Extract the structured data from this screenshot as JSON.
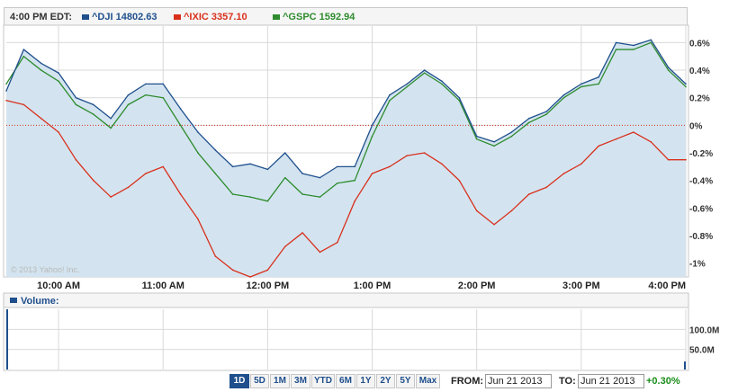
{
  "header": {
    "timestamp": "4:00 PM EDT:",
    "legend": [
      {
        "label": "^DJI 14802.63",
        "color": "#1f4f8c"
      },
      {
        "label": "^IXIC 3357.10",
        "color": "#d9301c"
      },
      {
        "label": "^GSPC 1592.94",
        "color": "#2e8b2e"
      }
    ]
  },
  "watermark": "© 2013 Yahoo! Inc.",
  "volume_label": "Volume:",
  "controls": {
    "ranges": [
      "1D",
      "5D",
      "1M",
      "3M",
      "YTD",
      "6M",
      "1Y",
      "2Y",
      "5Y",
      "Max"
    ],
    "active_range": "1D",
    "from_label": "FROM:",
    "from_value": "Jun 21 2013",
    "to_label": "TO:",
    "to_value": "Jun 21 2013",
    "change": "+0.30%"
  },
  "colors": {
    "dji": "#1f4f8c",
    "ixic": "#d9301c",
    "gspc": "#2e8b2e",
    "area_fill": "#d3e4f0",
    "zero_line": "#d9301c",
    "grid": "#d9d9d9"
  },
  "chart_data": [
    {
      "type": "line",
      "title": "",
      "xlabel": "",
      "ylabel": "",
      "x_ticks": [
        "10:00 AM",
        "11:00 AM",
        "12:00 PM",
        "1:00 PM",
        "2:00 PM",
        "3:00 PM",
        "4:00 PM"
      ],
      "y_ticks": [
        "0.6%",
        "0.4%",
        "0.2%",
        "0%",
        "-0.2%",
        "-0.4%",
        "-0.6%",
        "-0.8%",
        "-1%"
      ],
      "ylim": [
        -1.1,
        0.72
      ],
      "x_time_range": [
        "9:30 AM",
        "4:00 PM"
      ],
      "grid": true,
      "legend": "top",
      "series": [
        {
          "name": "^DJI 14802.63",
          "x": [
            "9:30",
            "9:40",
            "9:50",
            "10:00",
            "10:10",
            "10:20",
            "10:30",
            "10:40",
            "10:50",
            "11:00",
            "11:10",
            "11:20",
            "11:30",
            "11:40",
            "11:50",
            "12:00",
            "12:10",
            "12:20",
            "12:30",
            "12:40",
            "12:50",
            "13:00",
            "13:10",
            "13:20",
            "13:30",
            "13:40",
            "13:50",
            "14:00",
            "14:10",
            "14:20",
            "14:30",
            "14:40",
            "14:50",
            "15:00",
            "15:10",
            "15:20",
            "15:30",
            "15:40",
            "15:50",
            "16:00"
          ],
          "values": [
            0.25,
            0.55,
            0.45,
            0.38,
            0.2,
            0.15,
            0.05,
            0.22,
            0.3,
            0.3,
            0.12,
            -0.05,
            -0.18,
            -0.3,
            -0.28,
            -0.32,
            -0.2,
            -0.35,
            -0.38,
            -0.3,
            -0.3,
            0.0,
            0.22,
            0.3,
            0.4,
            0.32,
            0.2,
            -0.08,
            -0.12,
            -0.05,
            0.05,
            0.1,
            0.22,
            0.3,
            0.35,
            0.6,
            0.58,
            0.62,
            0.42,
            0.3
          ]
        },
        {
          "name": "^IXIC 3357.10",
          "x": [
            "9:30",
            "9:40",
            "9:50",
            "10:00",
            "10:10",
            "10:20",
            "10:30",
            "10:40",
            "10:50",
            "11:00",
            "11:10",
            "11:20",
            "11:30",
            "11:40",
            "11:50",
            "12:00",
            "12:10",
            "12:20",
            "12:30",
            "12:40",
            "12:50",
            "13:00",
            "13:10",
            "13:20",
            "13:30",
            "13:40",
            "13:50",
            "14:00",
            "14:10",
            "14:20",
            "14:30",
            "14:40",
            "14:50",
            "15:00",
            "15:10",
            "15:20",
            "15:30",
            "15:40",
            "15:50",
            "16:00"
          ],
          "values": [
            0.18,
            0.15,
            0.05,
            -0.05,
            -0.25,
            -0.4,
            -0.52,
            -0.45,
            -0.35,
            -0.3,
            -0.5,
            -0.68,
            -0.95,
            -1.05,
            -1.1,
            -1.05,
            -0.88,
            -0.78,
            -0.92,
            -0.85,
            -0.55,
            -0.35,
            -0.3,
            -0.22,
            -0.2,
            -0.28,
            -0.4,
            -0.62,
            -0.72,
            -0.62,
            -0.5,
            -0.45,
            -0.35,
            -0.28,
            -0.15,
            -0.1,
            -0.05,
            -0.12,
            -0.25,
            -0.25
          ]
        },
        {
          "name": "^GSPC 1592.94",
          "x": [
            "9:30",
            "9:40",
            "9:50",
            "10:00",
            "10:10",
            "10:20",
            "10:30",
            "10:40",
            "10:50",
            "11:00",
            "11:10",
            "11:20",
            "11:30",
            "11:40",
            "11:50",
            "12:00",
            "12:10",
            "12:20",
            "12:30",
            "12:40",
            "12:50",
            "13:00",
            "13:10",
            "13:20",
            "13:30",
            "13:40",
            "13:50",
            "14:00",
            "14:10",
            "14:20",
            "14:30",
            "14:40",
            "14:50",
            "15:00",
            "15:10",
            "15:20",
            "15:30",
            "15:40",
            "15:50",
            "16:00"
          ],
          "values": [
            0.3,
            0.5,
            0.4,
            0.32,
            0.15,
            0.08,
            -0.02,
            0.15,
            0.22,
            0.2,
            0.0,
            -0.2,
            -0.35,
            -0.5,
            -0.52,
            -0.55,
            -0.38,
            -0.5,
            -0.52,
            -0.42,
            -0.4,
            -0.08,
            0.18,
            0.28,
            0.38,
            0.3,
            0.18,
            -0.1,
            -0.15,
            -0.08,
            0.02,
            0.08,
            0.2,
            0.28,
            0.3,
            0.55,
            0.55,
            0.6,
            0.4,
            0.28
          ]
        }
      ]
    },
    {
      "type": "bar",
      "title": "Volume:",
      "y_ticks": [
        "100.0M",
        "50.0M"
      ],
      "ylim": [
        0,
        150
      ],
      "x": [
        "9:30",
        "16:00"
      ],
      "values": [
        150,
        20
      ],
      "grid": true
    }
  ]
}
